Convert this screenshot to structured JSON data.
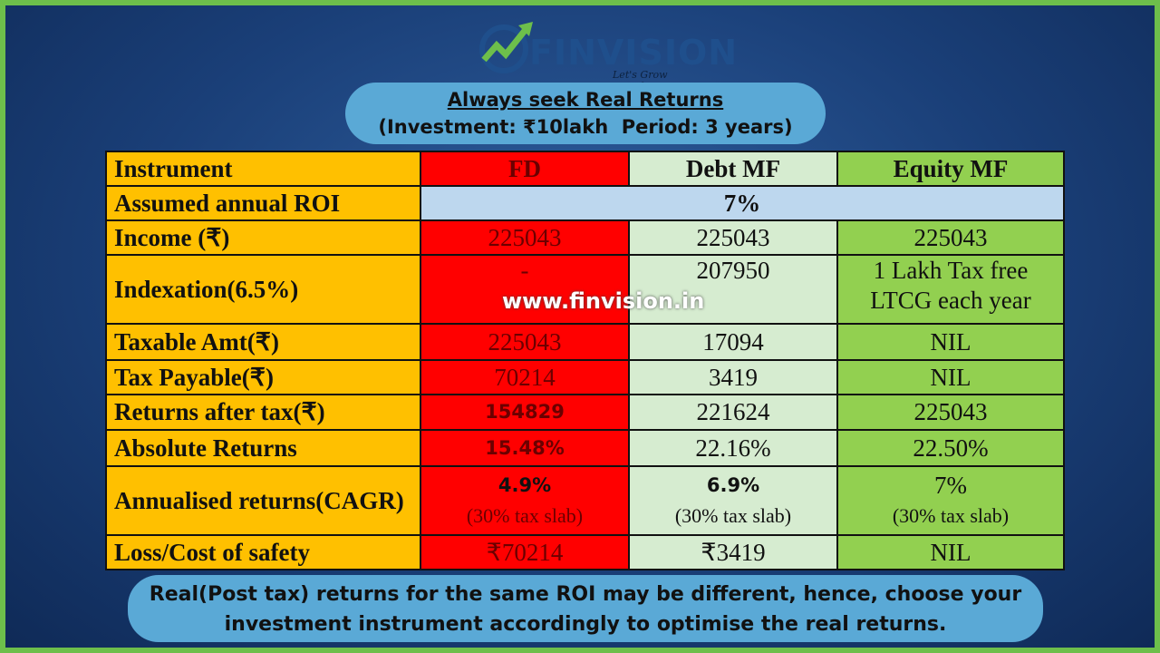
{
  "logo": {
    "name": "FINVISION",
    "tagline": "Let's Grow Together"
  },
  "header": {
    "title": "Always seek Real Returns",
    "subtitle": "(Investment: ₹10lakh  Period: 3 years)"
  },
  "table": {
    "columns": [
      "Instrument",
      "FD",
      "Debt MF",
      "Equity MF"
    ],
    "rows": [
      [
        "Assumed annual ROI",
        "7%"
      ],
      [
        "Income (₹)",
        "225043",
        "225043",
        "225043"
      ],
      [
        "Indexation(6.5%)",
        "-",
        "207950",
        "1 Lakh Tax free LTCG each year"
      ],
      [
        "Taxable Amt(₹)",
        "225043",
        "17094",
        "NIL"
      ],
      [
        "Tax Payable(₹)",
        "70214",
        "3419",
        "NIL"
      ],
      [
        "Returns after tax(₹)",
        "154829",
        "221624",
        "225043"
      ],
      [
        "Absolute Returns",
        "15.48%",
        "22.16%",
        "22.50%"
      ],
      [
        "Annualised returns(CAGR)",
        {
          "value": "4.9%",
          "note": "(30% tax slab)"
        },
        {
          "value": "6.9%",
          "note": "(30% tax slab)"
        },
        {
          "value": "7%",
          "note": "(30% tax slab)"
        }
      ],
      [
        "Loss/Cost of safety",
        "₹70214",
        "₹3419",
        "NIL"
      ]
    ]
  },
  "watermark": "www.finvision.in",
  "footer": "Real(Post tax) returns for the same ROI may be different, hence, choose your investment instrument accordingly to optimise the real returns."
}
